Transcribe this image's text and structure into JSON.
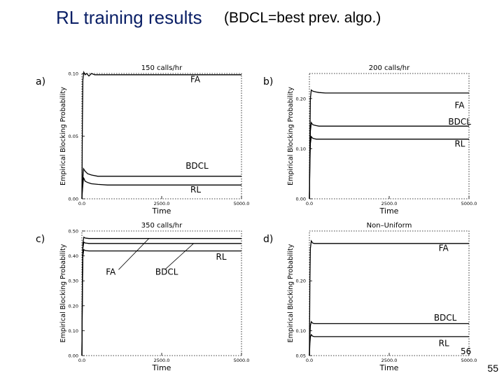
{
  "slide": {
    "title": "RL training results",
    "subtitle": "(BDCL=best prev. algo.)",
    "slide_number": "55"
  },
  "chart_data": [
    {
      "type": "line",
      "panel_letter": "a)",
      "title": "150 calls/hr",
      "xlabel": "Time",
      "ylabel": "Empirical Blocking Probability",
      "xlim": [
        0,
        5000
      ],
      "ylim": [
        0,
        0.1
      ],
      "x_ticks": [
        "0.0",
        "2500.0",
        "5000.0"
      ],
      "y_ticks": [
        {
          "v": 0.0,
          "label": "0.00"
        },
        {
          "v": 0.05,
          "label": "0.05"
        },
        {
          "v": 0.1,
          "label": "0.10"
        }
      ],
      "grid": false,
      "series": [
        {
          "name": "FA",
          "x": [
            0,
            15,
            30,
            60,
            100,
            150,
            220,
            300,
            400,
            600,
            900,
            1500,
            2500,
            3500,
            5000
          ],
          "values": [
            0.0,
            0.06,
            0.095,
            0.101,
            0.099,
            0.1,
            0.098,
            0.1,
            0.099,
            0.099,
            0.099,
            0.099,
            0.099,
            0.099,
            0.099
          ]
        },
        {
          "name": "BDCL",
          "x": [
            0,
            20,
            50,
            100,
            180,
            300,
            500,
            800,
            1200,
            2000,
            3500,
            5000
          ],
          "values": [
            0.0,
            0.012,
            0.024,
            0.022,
            0.02,
            0.019,
            0.018,
            0.018,
            0.018,
            0.018,
            0.018,
            0.018
          ]
        },
        {
          "name": "RL",
          "x": [
            0,
            20,
            50,
            100,
            180,
            300,
            500,
            800,
            1500,
            3000,
            5000
          ],
          "values": [
            0.0,
            0.008,
            0.017,
            0.014,
            0.013,
            0.012,
            0.0115,
            0.011,
            0.011,
            0.011,
            0.011
          ]
        }
      ],
      "annotations": [
        {
          "text": "FA",
          "x": 3400,
          "y": 0.093
        },
        {
          "text": "BDCL",
          "x": 3250,
          "y": 0.024
        },
        {
          "text": "RL",
          "x": 3400,
          "y": 0.005
        }
      ]
    },
    {
      "type": "line",
      "panel_letter": "b)",
      "title": "200 calls/hr",
      "xlabel": "Time",
      "ylabel": "Empirical Blocking Probability",
      "xlim": [
        0,
        5000
      ],
      "ylim": [
        0,
        0.25
      ],
      "x_ticks": [
        "0.0",
        "2500.0",
        "5000.0"
      ],
      "y_ticks": [
        {
          "v": 0.0,
          "label": "0.00"
        },
        {
          "v": 0.1,
          "label": "0.10"
        },
        {
          "v": 0.2,
          "label": "0.20"
        }
      ],
      "grid": false,
      "series": [
        {
          "name": "FA",
          "x": [
            0,
            15,
            30,
            60,
            100,
            150,
            220,
            300,
            500,
            800,
            1500,
            2500,
            3500,
            5000
          ],
          "values": [
            0.0,
            0.12,
            0.2,
            0.217,
            0.215,
            0.214,
            0.213,
            0.212,
            0.211,
            0.211,
            0.211,
            0.211,
            0.211,
            0.211
          ]
        },
        {
          "name": "BDCL",
          "x": [
            0,
            15,
            30,
            60,
            100,
            150,
            220,
            300,
            500,
            800,
            1500,
            2500,
            3500,
            5000
          ],
          "values": [
            0.0,
            0.08,
            0.135,
            0.152,
            0.148,
            0.147,
            0.146,
            0.145,
            0.145,
            0.145,
            0.145,
            0.145,
            0.145,
            0.145
          ]
        },
        {
          "name": "RL",
          "x": [
            0,
            15,
            30,
            60,
            100,
            150,
            220,
            300,
            500,
            800,
            1500,
            2500,
            3500,
            5000
          ],
          "values": [
            0.0,
            0.07,
            0.11,
            0.124,
            0.121,
            0.12,
            0.119,
            0.119,
            0.119,
            0.119,
            0.119,
            0.119,
            0.119,
            0.119
          ]
        }
      ],
      "annotations": [
        {
          "text": "FA",
          "x": 4550,
          "y": 0.181
        },
        {
          "text": "BDCL",
          "x": 4350,
          "y": 0.148
        },
        {
          "text": "RL",
          "x": 4550,
          "y": 0.104
        }
      ]
    },
    {
      "type": "line",
      "panel_letter": "c)",
      "title": "350 calls/hr",
      "xlabel": "Time",
      "ylabel": "Empirical Blocking Probability",
      "xlim": [
        0,
        5000
      ],
      "ylim": [
        0,
        0.5
      ],
      "x_ticks": [
        "0.0",
        "2500.0",
        "5000.0"
      ],
      "y_ticks": [
        {
          "v": 0.0,
          "label": "0.00"
        },
        {
          "v": 0.1,
          "label": "0.10"
        },
        {
          "v": 0.2,
          "label": "0.20"
        },
        {
          "v": 0.3,
          "label": "0.30"
        },
        {
          "v": 0.4,
          "label": "0.40"
        },
        {
          "v": 0.5,
          "label": "0.50"
        }
      ],
      "grid": false,
      "series": [
        {
          "name": "FA",
          "x": [
            0,
            15,
            30,
            60,
            100,
            150,
            220,
            300,
            500,
            800,
            1500,
            2500,
            3500,
            5000
          ],
          "values": [
            0.0,
            0.3,
            0.45,
            0.475,
            0.472,
            0.471,
            0.47,
            0.47,
            0.47,
            0.47,
            0.47,
            0.47,
            0.47,
            0.47
          ]
        },
        {
          "name": "BDCL",
          "x": [
            0,
            15,
            30,
            60,
            100,
            150,
            220,
            300,
            500,
            800,
            1500,
            2500,
            3500,
            5000
          ],
          "values": [
            0.0,
            0.28,
            0.43,
            0.455,
            0.452,
            0.451,
            0.45,
            0.45,
            0.45,
            0.45,
            0.45,
            0.45,
            0.45,
            0.45
          ]
        },
        {
          "name": "RL",
          "x": [
            0,
            15,
            30,
            60,
            100,
            150,
            220,
            300,
            500,
            800,
            1500,
            2500,
            3500,
            5000
          ],
          "values": [
            0.0,
            0.25,
            0.4,
            0.425,
            0.422,
            0.421,
            0.42,
            0.42,
            0.42,
            0.42,
            0.42,
            0.42,
            0.42,
            0.42
          ]
        }
      ],
      "annotations": [
        {
          "text": "FA",
          "x": 750,
          "y": 0.325
        },
        {
          "text": "BDCL",
          "x": 2300,
          "y": 0.325
        },
        {
          "text": "RL",
          "x": 4200,
          "y": 0.385
        }
      ],
      "leaders": [
        {
          "x0": 1150,
          "y0": 0.345,
          "x1": 2100,
          "y1": 0.47
        },
        {
          "x0": 2600,
          "y0": 0.345,
          "x1": 3500,
          "y1": 0.45
        }
      ]
    },
    {
      "type": "line",
      "panel_letter": "d)",
      "title": "Non–Uniform",
      "xlabel": "Time",
      "ylabel": "Empirical Blocking Probability",
      "xlim": [
        0,
        5000
      ],
      "ylim": [
        0.05,
        0.3
      ],
      "x_ticks": [
        "0.0",
        "2500.0",
        "5000.0"
      ],
      "y_ticks": [
        {
          "v": 0.05,
          "label": "0.05"
        },
        {
          "v": 0.1,
          "label": "0.10"
        },
        {
          "v": 0.2,
          "label": "0.20"
        }
      ],
      "grid": false,
      "series": [
        {
          "name": "FA",
          "x": [
            0,
            15,
            30,
            60,
            100,
            150,
            220,
            300,
            500,
            800,
            1500,
            2500,
            3500,
            5000
          ],
          "values": [
            0.05,
            0.2,
            0.265,
            0.28,
            0.276,
            0.275,
            0.275,
            0.275,
            0.275,
            0.275,
            0.275,
            0.275,
            0.275,
            0.275
          ]
        },
        {
          "name": "BDCL",
          "x": [
            0,
            15,
            30,
            60,
            100,
            150,
            220,
            300,
            500,
            800,
            1500,
            2500,
            3500,
            5000
          ],
          "values": [
            0.05,
            0.09,
            0.11,
            0.118,
            0.115,
            0.114,
            0.114,
            0.114,
            0.114,
            0.114,
            0.114,
            0.114,
            0.114,
            0.114
          ]
        },
        {
          "name": "RL",
          "x": [
            0,
            15,
            30,
            60,
            100,
            150,
            220,
            300,
            500,
            800,
            1500,
            2500,
            3500,
            5000
          ],
          "values": [
            0.05,
            0.075,
            0.087,
            0.092,
            0.089,
            0.088,
            0.088,
            0.088,
            0.088,
            0.088,
            0.088,
            0.088,
            0.088,
            0.088
          ]
        }
      ],
      "annotations": [
        {
          "text": "FA",
          "x": 4050,
          "y": 0.26
        },
        {
          "text": "BDCL",
          "x": 3900,
          "y": 0.12
        },
        {
          "text": "RL",
          "x": 4050,
          "y": 0.069
        }
      ],
      "corner_label": "56"
    }
  ]
}
